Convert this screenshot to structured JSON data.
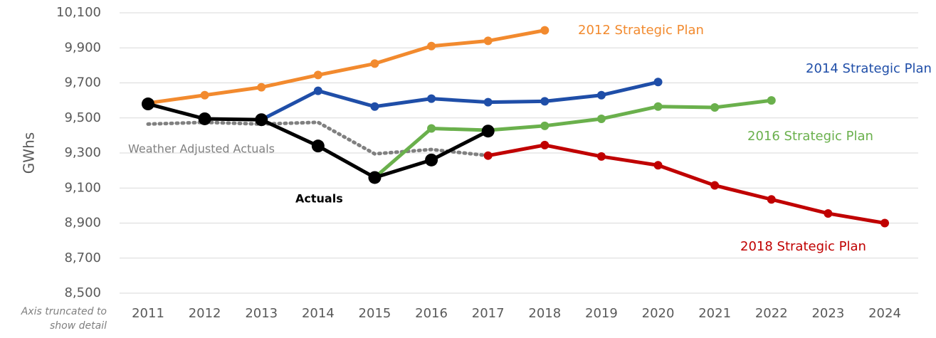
{
  "chart_data": {
    "type": "line",
    "y_label": "GWhs",
    "note": "Axis truncated to show detail",
    "categories": [
      "2011",
      "2012",
      "2013",
      "2014",
      "2015",
      "2016",
      "2017",
      "2018",
      "2019",
      "2020",
      "2021",
      "2022",
      "2023",
      "2024"
    ],
    "ylim": [
      8500,
      10100
    ],
    "yticks": [
      {
        "value": 8500,
        "label": "8,500"
      },
      {
        "value": 8700,
        "label": "8,700"
      },
      {
        "value": 8900,
        "label": "8,900"
      },
      {
        "value": 9100,
        "label": "9,100"
      },
      {
        "value": 9300,
        "label": "9,300"
      },
      {
        "value": 9500,
        "label": "9,500"
      },
      {
        "value": 9700,
        "label": "9,700"
      },
      {
        "value": 9900,
        "label": "9,900"
      },
      {
        "value": 10100,
        "label": "10,100"
      }
    ],
    "grid": true,
    "series": [
      {
        "name": "Weather Adjusted Actuals",
        "color": "#808080",
        "style": "dotted",
        "values": [
          9465,
          9475,
          9465,
          9475,
          9295,
          9320,
          9285,
          null,
          null,
          null,
          null,
          null,
          null,
          null
        ]
      },
      {
        "name": "2018 Strategic Plan",
        "color": "#c00000",
        "values": [
          null,
          null,
          null,
          null,
          null,
          null,
          9285,
          9345,
          9280,
          9230,
          9115,
          9035,
          8955,
          8900
        ]
      },
      {
        "name": "2016 Strategic Plan",
        "color": "#6ab04c",
        "values": [
          null,
          null,
          null,
          null,
          9160,
          9440,
          9430,
          9455,
          9495,
          9565,
          9560,
          9600,
          null,
          null
        ]
      },
      {
        "name": "2014 Strategic Plan",
        "color": "#1f4ea8",
        "values": [
          null,
          null,
          9490,
          9655,
          9565,
          9610,
          9590,
          9595,
          9630,
          9705,
          null,
          null,
          null,
          null
        ]
      },
      {
        "name": "2012 Strategic Plan",
        "color": "#f28a2e",
        "values": [
          9585,
          9630,
          9675,
          9745,
          9810,
          9910,
          9940,
          10000,
          null,
          null,
          null,
          null,
          null,
          null
        ]
      },
      {
        "name": "Actuals",
        "color": "#000000",
        "values": [
          9580,
          9495,
          9490,
          9340,
          9160,
          9260,
          9425,
          null,
          null,
          null,
          null,
          null,
          null,
          null
        ]
      }
    ]
  }
}
